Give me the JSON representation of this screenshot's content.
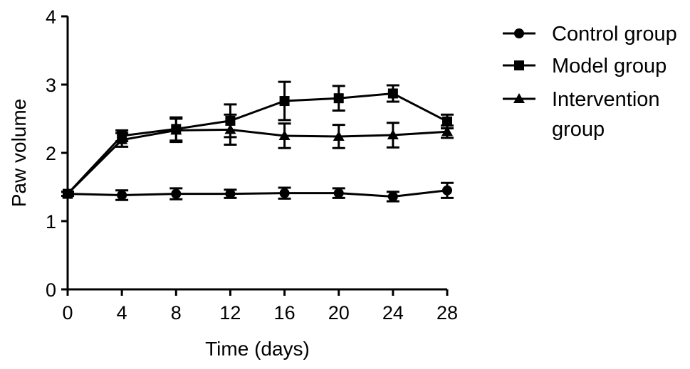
{
  "chart_data": {
    "type": "line",
    "xlabel": "Time (days)",
    "ylabel": "Paw volume",
    "xlim": [
      0,
      28
    ],
    "ylim": [
      0,
      4
    ],
    "x_ticks": [
      "0",
      "4",
      "8",
      "12",
      "16",
      "20",
      "24",
      "28"
    ],
    "y_ticks": [
      "0",
      "1",
      "2",
      "3",
      "4"
    ],
    "x": [
      0,
      4,
      8,
      12,
      16,
      20,
      24,
      28
    ],
    "grid": false,
    "legend_position": "right",
    "series": [
      {
        "name": "Control group",
        "marker": "circle",
        "values": [
          1.4,
          1.38,
          1.4,
          1.4,
          1.41,
          1.41,
          1.36,
          1.45
        ],
        "errors": [
          0.03,
          0.07,
          0.08,
          0.06,
          0.08,
          0.07,
          0.07,
          0.11
        ]
      },
      {
        "name": "Model group",
        "marker": "square",
        "values": [
          1.4,
          2.25,
          2.35,
          2.47,
          2.76,
          2.8,
          2.87,
          2.46
        ],
        "errors": [
          0.03,
          0.08,
          0.17,
          0.24,
          0.28,
          0.18,
          0.12,
          0.1
        ]
      },
      {
        "name": "Intervention group",
        "marker": "triangle",
        "values": [
          1.4,
          2.19,
          2.33,
          2.34,
          2.25,
          2.24,
          2.26,
          2.31
        ],
        "errors": [
          0.03,
          0.1,
          0.17,
          0.22,
          0.18,
          0.17,
          0.18,
          0.09
        ]
      }
    ],
    "legend_lines": {
      "Control group": [
        "Control group"
      ],
      "Model group": [
        "Model group"
      ],
      "Intervention group": [
        "Intervention",
        "group"
      ]
    },
    "colors": {
      "line": "#000000"
    }
  }
}
